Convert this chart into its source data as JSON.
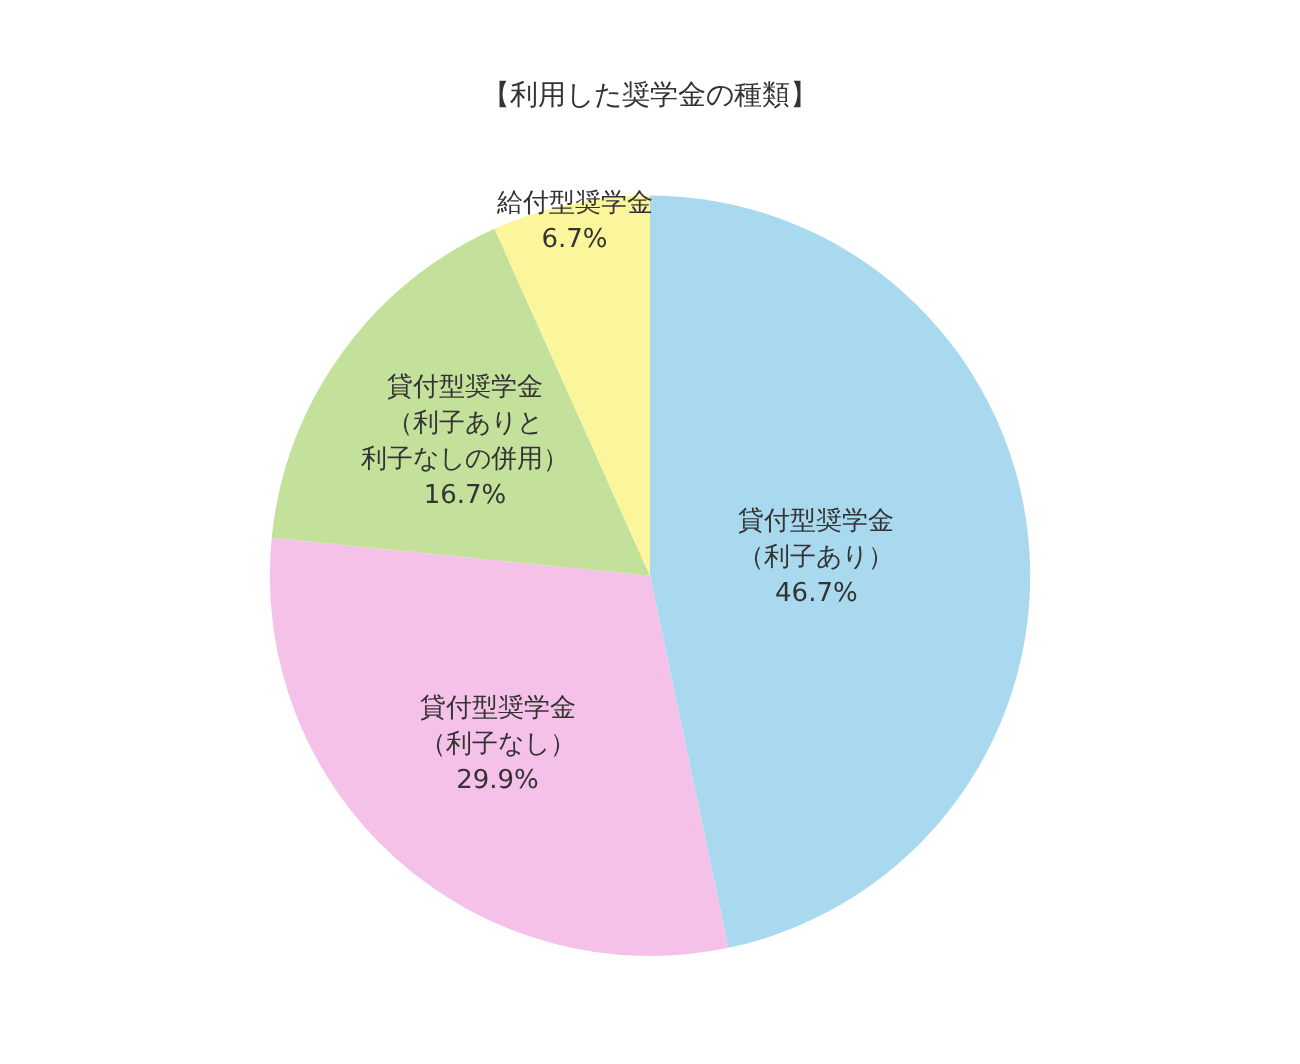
{
  "chart_data": {
    "type": "pie",
    "title": "【利用した奨学金の種類】",
    "categories": [
      "貸付型奨学金（利子あり）",
      "貸付型奨学金（利子なし）",
      "貸付型奨学金（利子ありと利子なしの併用）",
      "給付型奨学金"
    ],
    "values": [
      46.7,
      29.9,
      16.7,
      6.7
    ],
    "colors": [
      "#a9d9ee",
      "#f6c1e9",
      "#c4e19b",
      "#fbf69b"
    ],
    "value_labels": [
      "46.7%",
      "29.9%",
      "16.7%",
      "6.7%"
    ]
  }
}
